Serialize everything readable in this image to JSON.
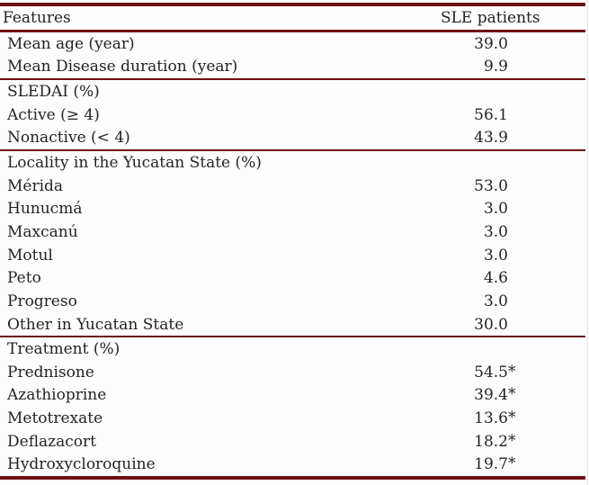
{
  "colors": {
    "rule": "#6e1014",
    "text": "#262220",
    "background": "#fdfdfd"
  },
  "table": {
    "header": {
      "feature_col": "Features",
      "value_col": "SLE patients"
    },
    "sections": [
      {
        "rows": [
          {
            "label": "Mean age (year)",
            "value": "39.0",
            "suffix": ""
          },
          {
            "label": "Mean Disease duration (year)",
            "value": "9.9",
            "suffix": ""
          }
        ]
      },
      {
        "rows": [
          {
            "label": "SLEDAI (%)",
            "value": "",
            "suffix": ""
          },
          {
            "label": "Active (≥ 4)",
            "value": "56.1",
            "suffix": ""
          },
          {
            "label": "Nonactive (< 4)",
            "value": "43.9",
            "suffix": ""
          }
        ]
      },
      {
        "rows": [
          {
            "label": "Locality in the Yucatan State (%)",
            "value": "",
            "suffix": ""
          },
          {
            "label": "Mérida",
            "value": "53.0",
            "suffix": ""
          },
          {
            "label": "Hunucmá",
            "value": "3.0",
            "suffix": ""
          },
          {
            "label": "Maxcanú",
            "value": "3.0",
            "suffix": ""
          },
          {
            "label": "Motul",
            "value": "3.0",
            "suffix": ""
          },
          {
            "label": "Peto",
            "value": "4.6",
            "suffix": ""
          },
          {
            "label": "Progreso",
            "value": "3.0",
            "suffix": ""
          },
          {
            "label": "Other in Yucatan State",
            "value": "30.0",
            "suffix": ""
          }
        ]
      },
      {
        "rows": [
          {
            "label": "Treatment (%)",
            "value": "",
            "suffix": ""
          },
          {
            "label": "Prednisone",
            "value": "54.5",
            "suffix": "*"
          },
          {
            "label": "Azathioprine",
            "value": "39.4",
            "suffix": "*"
          },
          {
            "label": "Metotrexate",
            "value": "13.6",
            "suffix": "*"
          },
          {
            "label": "Deflazacort",
            "value": "18.2",
            "suffix": "*"
          },
          {
            "label": "Hydroxycloroquine",
            "value": "19.7",
            "suffix": "*"
          }
        ]
      }
    ]
  }
}
